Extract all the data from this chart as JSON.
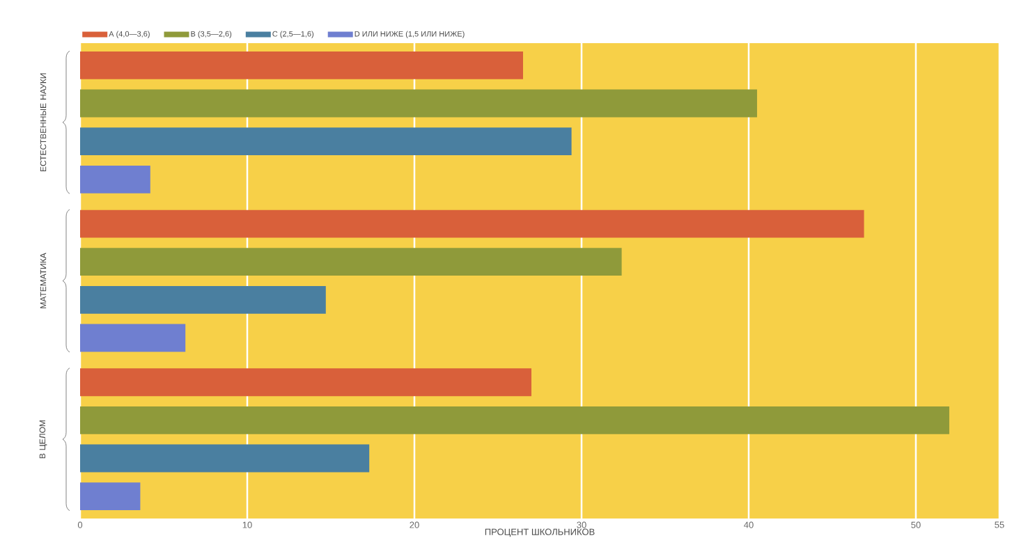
{
  "chart_data": {
    "type": "bar",
    "orientation": "horizontal",
    "xlabel": "ПРОЦЕНТ ШКОЛЬНИКОВ",
    "categories": [
      "ЕСТЕСТВЕННЫЕ НАУКИ",
      "МАТЕМАТИКА",
      "В ЦЕЛОМ"
    ],
    "series": [
      {
        "name": "A (4,0—3,6)",
        "color": "#d9603a",
        "values": [
          26.5,
          46.9,
          27.0
        ]
      },
      {
        "name": "B (3,5—2,6)",
        "color": "#8f9a3a",
        "values": [
          40.5,
          32.4,
          52.0
        ]
      },
      {
        "name": "C (2,5—1,6)",
        "color": "#4a7fa0",
        "values": [
          29.4,
          14.7,
          17.3
        ]
      },
      {
        "name": "D ИЛИ НИЖЕ (1,5 ИЛИ НИЖЕ)",
        "color": "#6f7fd0",
        "values": [
          4.2,
          6.3,
          3.6
        ]
      }
    ],
    "xlim": [
      0,
      55
    ],
    "xticks": [
      0,
      10,
      20,
      30,
      40,
      50,
      55
    ],
    "grid": "x",
    "legend": "top"
  }
}
